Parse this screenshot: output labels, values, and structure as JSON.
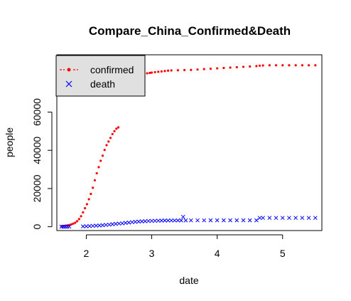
{
  "chart_data": {
    "type": "scatter",
    "title": "Compare_China_Confirmed&Death",
    "xlabel": "date",
    "ylabel": "people",
    "xlim": [
      1.55,
      5.6
    ],
    "ylim": [
      -2000,
      90000
    ],
    "x_ticks": [
      2,
      3,
      4,
      5
    ],
    "y_ticks": [
      0,
      20000,
      40000,
      60000
    ],
    "x_tick_labels": [
      "2",
      "3",
      "4",
      "5"
    ],
    "y_tick_labels": [
      "0",
      "20000",
      "40000",
      "60000"
    ],
    "legend": {
      "position": "top-left",
      "entries": [
        {
          "label": "confirmed",
          "color": "#ff0000",
          "symbol": "dot-dash"
        },
        {
          "label": "death",
          "color": "#0000ff",
          "symbol": "cross"
        }
      ]
    },
    "series": [
      {
        "name": "confirmed",
        "color": "#ff0000",
        "marker": "dot",
        "points": [
          [
            1.62,
            300
          ],
          [
            1.65,
            400
          ],
          [
            1.68,
            550
          ],
          [
            1.71,
            700
          ],
          [
            1.74,
            900
          ],
          [
            1.77,
            1200
          ],
          [
            1.8,
            1600
          ],
          [
            1.83,
            2100
          ],
          [
            1.86,
            2900
          ],
          [
            1.89,
            4000
          ],
          [
            1.92,
            5500
          ],
          [
            1.95,
            7500
          ],
          [
            1.98,
            9700
          ],
          [
            2.01,
            11800
          ],
          [
            2.04,
            14400
          ],
          [
            2.07,
            17200
          ],
          [
            2.1,
            20400
          ],
          [
            2.13,
            24300
          ],
          [
            2.16,
            28000
          ],
          [
            2.19,
            31200
          ],
          [
            2.22,
            34500
          ],
          [
            2.25,
            37200
          ],
          [
            2.28,
            40200
          ],
          [
            2.31,
            42700
          ],
          [
            2.34,
            44600
          ],
          [
            2.37,
            46500
          ],
          [
            2.4,
            48500
          ],
          [
            2.43,
            50000
          ],
          [
            2.46,
            51300
          ],
          [
            2.49,
            52000
          ],
          [
            2.53,
            78500
          ],
          [
            2.57,
            78800
          ],
          [
            2.61,
            79000
          ],
          [
            2.66,
            79200
          ],
          [
            2.71,
            79300
          ],
          [
            2.76,
            79500
          ],
          [
            2.8,
            79700
          ],
          [
            2.84,
            79900
          ],
          [
            2.88,
            80100
          ],
          [
            2.93,
            80300
          ],
          [
            2.97,
            80500
          ],
          [
            3.0,
            80700
          ],
          [
            3.05,
            80900
          ],
          [
            3.1,
            81100
          ],
          [
            3.15,
            81300
          ],
          [
            3.2,
            81500
          ],
          [
            3.25,
            81700
          ],
          [
            3.3,
            81800
          ],
          [
            3.4,
            81900
          ],
          [
            3.5,
            82000
          ],
          [
            3.6,
            82100
          ],
          [
            3.7,
            82300
          ],
          [
            3.8,
            82500
          ],
          [
            3.9,
            82700
          ],
          [
            4.0,
            82900
          ],
          [
            4.1,
            83100
          ],
          [
            4.2,
            83300
          ],
          [
            4.3,
            83500
          ],
          [
            4.4,
            83700
          ],
          [
            4.5,
            83900
          ],
          [
            4.6,
            84100
          ],
          [
            4.65,
            84300
          ],
          [
            4.7,
            84400
          ],
          [
            4.8,
            84500
          ],
          [
            4.9,
            84500
          ],
          [
            5.0,
            84500
          ],
          [
            5.1,
            84500
          ],
          [
            5.2,
            84500
          ],
          [
            5.3,
            84500
          ],
          [
            5.4,
            84500
          ],
          [
            5.5,
            84500
          ]
        ]
      },
      {
        "name": "death",
        "color": "#0000ff",
        "marker": "cross",
        "points": [
          [
            1.62,
            0
          ],
          [
            1.65,
            0
          ],
          [
            1.68,
            10
          ],
          [
            1.71,
            20
          ],
          [
            1.74,
            30
          ],
          [
            1.95,
            200
          ],
          [
            2.0,
            250
          ],
          [
            2.05,
            350
          ],
          [
            2.1,
            450
          ],
          [
            2.15,
            550
          ],
          [
            2.2,
            650
          ],
          [
            2.25,
            800
          ],
          [
            2.3,
            950
          ],
          [
            2.35,
            1100
          ],
          [
            2.4,
            1300
          ],
          [
            2.45,
            1500
          ],
          [
            2.5,
            1650
          ],
          [
            2.55,
            1800
          ],
          [
            2.6,
            2000
          ],
          [
            2.65,
            2200
          ],
          [
            2.7,
            2400
          ],
          [
            2.75,
            2550
          ],
          [
            2.8,
            2700
          ],
          [
            2.85,
            2800
          ],
          [
            2.9,
            2900
          ],
          [
            2.95,
            3000
          ],
          [
            3.0,
            3050
          ],
          [
            3.05,
            3100
          ],
          [
            3.1,
            3150
          ],
          [
            3.15,
            3200
          ],
          [
            3.2,
            3250
          ],
          [
            3.25,
            3270
          ],
          [
            3.3,
            3280
          ],
          [
            3.35,
            3290
          ],
          [
            3.4,
            3300
          ],
          [
            3.45,
            3310
          ],
          [
            3.48,
            5200
          ],
          [
            3.52,
            3320
          ],
          [
            3.6,
            3330
          ],
          [
            3.7,
            3330
          ],
          [
            3.8,
            3335
          ],
          [
            3.9,
            3340
          ],
          [
            4.0,
            3340
          ],
          [
            4.1,
            3340
          ],
          [
            4.2,
            3340
          ],
          [
            4.3,
            3340
          ],
          [
            4.4,
            3340
          ],
          [
            4.5,
            3340
          ],
          [
            4.6,
            3340
          ],
          [
            4.65,
            4630
          ],
          [
            4.7,
            4630
          ],
          [
            4.8,
            4630
          ],
          [
            4.9,
            4630
          ],
          [
            5.0,
            4630
          ],
          [
            5.1,
            4630
          ],
          [
            5.2,
            4630
          ],
          [
            5.3,
            4630
          ],
          [
            5.4,
            4630
          ],
          [
            5.5,
            4630
          ]
        ]
      }
    ]
  }
}
